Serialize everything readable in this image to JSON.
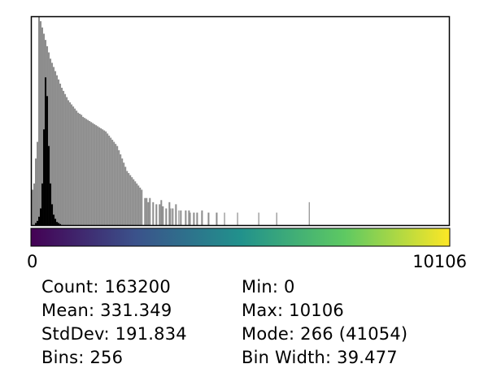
{
  "chart_data": {
    "type": "bar",
    "title": "",
    "xlabel": "",
    "ylabel": "",
    "xlim": [
      0,
      10106
    ],
    "bins": 256,
    "bin_width": 39.477,
    "x_tick_labels": [
      "0",
      "10106"
    ],
    "colorbar": {
      "colormap": "viridis",
      "stops": [
        "#440154",
        "#3b528b",
        "#21918c",
        "#5ec962",
        "#fde725"
      ]
    },
    "series": [
      {
        "color": "#8c8c8c",
        "scale": "logarithmic",
        "values": [
          0.17,
          0.2,
          0.32,
          0.4,
          1.0,
          0.98,
          0.95,
          0.92,
          0.89,
          0.86,
          0.83,
          0.8,
          0.78,
          0.76,
          0.74,
          0.72,
          0.7,
          0.68,
          0.66,
          0.645,
          0.63,
          0.615,
          0.6,
          0.59,
          0.58,
          0.57,
          0.56,
          0.55,
          0.54,
          0.535,
          0.53,
          0.52,
          0.515,
          0.51,
          0.505,
          0.5,
          0.495,
          0.49,
          0.485,
          0.48,
          0.475,
          0.47,
          0.465,
          0.46,
          0.455,
          0.45,
          0.44,
          0.43,
          0.42,
          0.41,
          0.4,
          0.39,
          0.38,
          0.36,
          0.34,
          0.32,
          0.3,
          0.28,
          0.26,
          0.25,
          0.24,
          0.23,
          0.22,
          0.21,
          0.2,
          0.19,
          0.18,
          0.17,
          0.0,
          0.13,
          0.13,
          0.11,
          0.13,
          0.0,
          0.11,
          0.0,
          0.1,
          0.0,
          0.1,
          0.12,
          0.09,
          0.0,
          0.08,
          0.0,
          0.11,
          0.0,
          0.08,
          0.0,
          0.1,
          0.0,
          0.0,
          0.07,
          0.0,
          0.0,
          0.07,
          0.0,
          0.07,
          0.0,
          0.0,
          0.06,
          0.0,
          0.06,
          0.0,
          0.0,
          0.07,
          0.0,
          0.0,
          0.0,
          0.06,
          0.0,
          0.0,
          0.0,
          0.0,
          0.06,
          0.0,
          0.0,
          0.0,
          0.0,
          0.0,
          0.0,
          0.0,
          0.0,
          0.0,
          0.0,
          0.0,
          0.0,
          0.0,
          0.0,
          0.0,
          0.0,
          0.0,
          0.0,
          0.0,
          0.0,
          0.0,
          0.0,
          0.0,
          0.0,
          0.0,
          0.0,
          0.0,
          0.0,
          0.0,
          0.0,
          0.0,
          0.0,
          0.0,
          0.0,
          0.0,
          0.0,
          0.0,
          0.0,
          0.0,
          0.0,
          0.0,
          0.0,
          0.0,
          0.0,
          0.0,
          0.0,
          0.0,
          0.0,
          0.0,
          0.0,
          0.0,
          0.0,
          0.0,
          0.0,
          0.0,
          0.0,
          0.0,
          0.0,
          0.0,
          0.0,
          0.0,
          0.0,
          0.0,
          0.0,
          0.0,
          0.0,
          0.0,
          0.0,
          0.0,
          0.0,
          0.0,
          0.0,
          0.0,
          0.0,
          0.0,
          0.0,
          0.0,
          0.0,
          0.0,
          0.0,
          0.0,
          0.0,
          0.0,
          0.0,
          0.0,
          0.0,
          0.0,
          0.0,
          0.0,
          0.0,
          0.0,
          0.0,
          0.0,
          0.0,
          0.0,
          0.0,
          0.0,
          0.0,
          0.0,
          0.0,
          0.0,
          0.0,
          0.0,
          0.0,
          0.0,
          0.0,
          0.0,
          0.0,
          0.0,
          0.0,
          0.0,
          0.0,
          0.0,
          0.0,
          0.0,
          0.0,
          0.0,
          0.0,
          0.0,
          0.0,
          0.0,
          0.0,
          0.0,
          0.0,
          0.0,
          0.0,
          0.0,
          0.0,
          0.0,
          0.0,
          0.0,
          0.0,
          0.0,
          0.0,
          0.0,
          0.0,
          0.0,
          0.0,
          0.0,
          0.0,
          0.0,
          0.0
        ]
      },
      {
        "color": "#000000",
        "scale": "linear",
        "values": [
          0.0,
          0.0,
          0.01,
          0.02,
          0.04,
          0.08,
          0.2,
          0.46,
          0.71,
          0.62,
          0.38,
          0.2,
          0.1,
          0.05,
          0.03,
          0.015,
          0.01,
          0.005,
          0.0,
          0.0,
          0.0,
          0.0,
          0.0,
          0.0,
          0.0,
          0.0,
          0.0,
          0.0,
          0.0,
          0.0,
          0.0,
          0.0,
          0.0,
          0.0,
          0.0,
          0.0,
          0.0,
          0.0,
          0.0,
          0.0,
          0.0,
          0.0,
          0.0,
          0.0,
          0.0,
          0.0,
          0.0,
          0.0,
          0.0,
          0.0,
          0.0,
          0.0,
          0.0,
          0.0,
          0.0,
          0.0,
          0.0,
          0.0,
          0.0,
          0.0,
          0.0,
          0.0,
          0.0,
          0.0,
          0.0,
          0.0,
          0.0,
          0.0,
          0.0,
          0.0,
          0.0,
          0.0,
          0.0,
          0.0,
          0.0,
          0.0,
          0.0,
          0.0,
          0.0,
          0.0,
          0.0,
          0.0,
          0.0,
          0.0,
          0.0,
          0.0,
          0.0,
          0.0,
          0.0,
          0.0,
          0.0,
          0.0,
          0.0,
          0.0,
          0.0,
          0.0,
          0.0,
          0.0,
          0.0,
          0.0,
          0.0,
          0.0,
          0.0,
          0.0,
          0.0,
          0.0,
          0.0,
          0.0,
          0.0,
          0.0,
          0.0,
          0.0,
          0.0,
          0.0,
          0.0,
          0.0,
          0.0,
          0.0,
          0.0,
          0.0,
          0.0,
          0.0,
          0.0,
          0.0,
          0.0,
          0.0,
          0.0,
          0.0,
          0.0,
          0.0,
          0.0,
          0.0,
          0.0,
          0.0,
          0.0,
          0.0,
          0.0,
          0.0,
          0.0,
          0.0,
          0.0,
          0.0,
          0.0,
          0.0,
          0.0,
          0.0,
          0.0,
          0.0,
          0.0,
          0.0,
          0.0,
          0.0,
          0.0,
          0.0,
          0.0,
          0.0,
          0.0,
          0.0,
          0.0,
          0.0,
          0.0,
          0.0,
          0.0,
          0.0,
          0.0,
          0.0,
          0.0,
          0.0,
          0.0,
          0.0,
          0.0,
          0.0,
          0.0,
          0.0,
          0.0,
          0.0,
          0.0,
          0.0,
          0.0,
          0.0,
          0.0,
          0.0,
          0.0,
          0.0,
          0.0,
          0.0,
          0.0,
          0.0,
          0.0,
          0.0,
          0.0,
          0.0,
          0.0,
          0.0,
          0.0,
          0.0,
          0.0,
          0.0,
          0.0,
          0.0,
          0.0,
          0.0,
          0.0,
          0.0,
          0.0,
          0.0,
          0.0,
          0.0,
          0.0,
          0.0,
          0.0,
          0.0,
          0.0,
          0.0,
          0.0,
          0.0,
          0.0,
          0.0,
          0.0,
          0.0,
          0.0,
          0.0,
          0.0,
          0.0,
          0.0,
          0.0,
          0.0,
          0.0,
          0.0,
          0.0,
          0.0,
          0.0,
          0.0,
          0.0,
          0.0,
          0.0,
          0.0,
          0.0,
          0.0,
          0.0,
          0.0,
          0.0,
          0.0,
          0.0,
          0.0,
          0.0,
          0.0,
          0.0,
          0.0,
          0.0,
          0.0,
          0.0,
          0.0,
          0.0,
          0.0,
          0.0
        ]
      }
    ],
    "outlier_bars": [
      {
        "bin": 80,
        "value": 0.09
      },
      {
        "bin": 85,
        "value": 0.08
      },
      {
        "bin": 90,
        "value": 0.07
      },
      {
        "bin": 97,
        "value": 0.06
      },
      {
        "bin": 104,
        "value": 0.06
      },
      {
        "bin": 118,
        "value": 0.06
      },
      {
        "bin": 126,
        "value": 0.06
      },
      {
        "bin": 139,
        "value": 0.06
      },
      {
        "bin": 150,
        "value": 0.06
      },
      {
        "bin": 170,
        "value": 0.11
      }
    ]
  },
  "axis": {
    "min_label": "0",
    "max_label": "10106"
  },
  "stats": {
    "count": "Count: 163200",
    "mean": "Mean: 331.349",
    "stddev": "StdDev: 191.834",
    "bins": "Bins: 256",
    "min": "Min: 0",
    "max": "Max: 10106",
    "mode": "Mode: 266 (41054)",
    "bin_width": "Bin Width: 39.477"
  }
}
